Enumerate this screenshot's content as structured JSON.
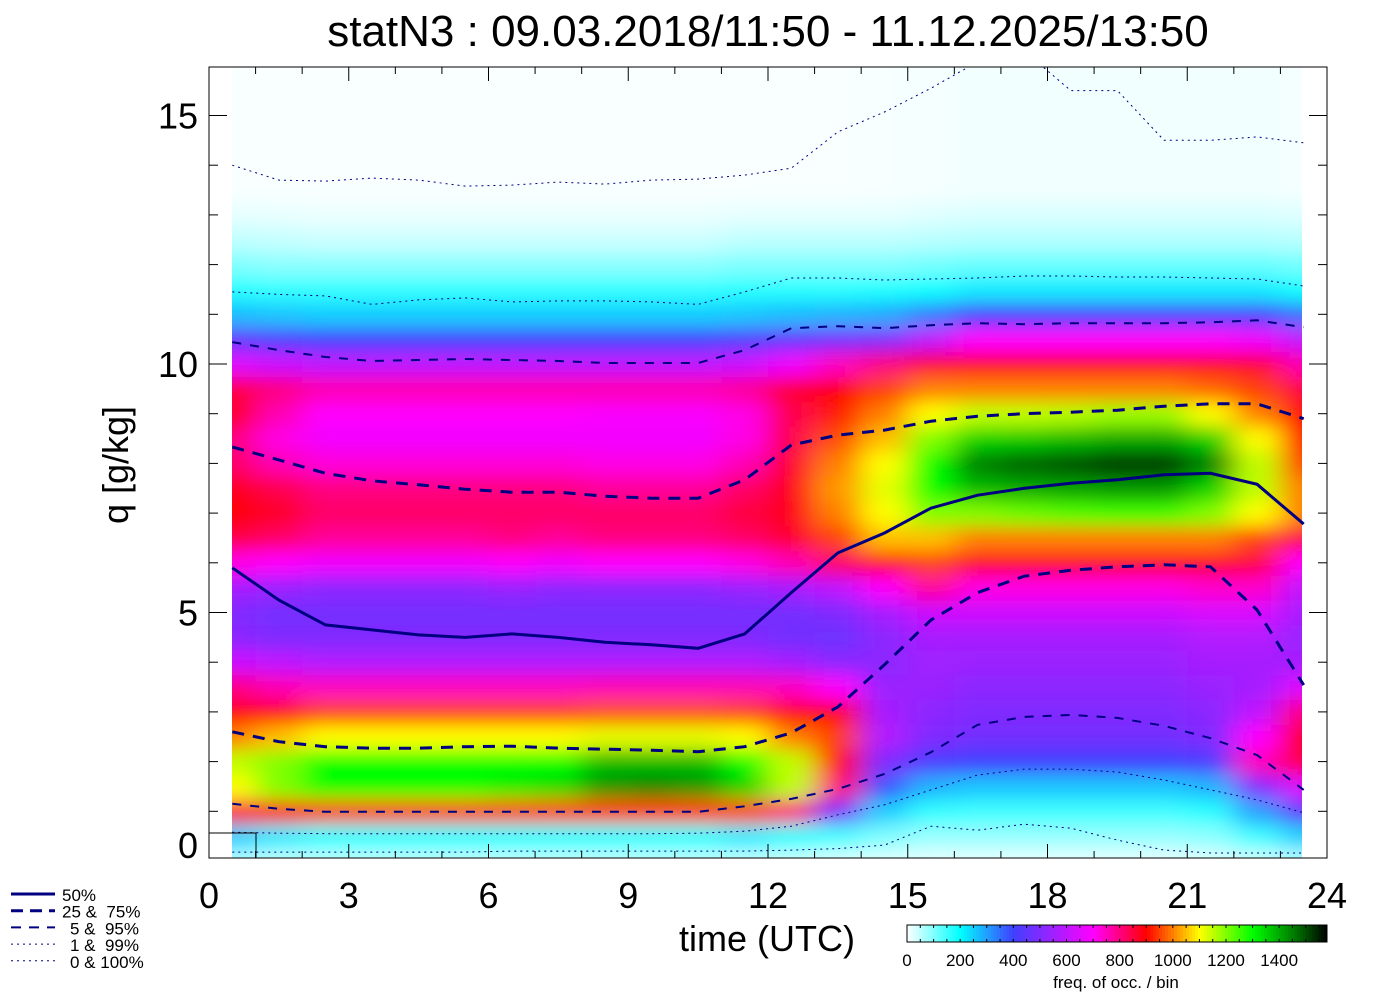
{
  "chart_data": {
    "type": "heatmap",
    "title": "statN3 : 09.03.2018/11:50 - 11.12.2025/13:50",
    "xlabel": "time (UTC)",
    "ylabel": "q [g/kg]",
    "xlim": [
      0,
      24
    ],
    "ylim": [
      0,
      16
    ],
    "xticks": [
      0,
      3,
      6,
      9,
      12,
      15,
      18,
      21,
      24
    ],
    "xtick_labels": [
      "0",
      "3",
      "6",
      "9",
      "12",
      "15",
      "18",
      "21",
      "24"
    ],
    "yticks": [
      0,
      5,
      10,
      15
    ],
    "ytick_labels": [
      "0",
      "5",
      "10",
      "15"
    ],
    "colorbar": {
      "label": "freq. of occ. / bin",
      "range": [
        0,
        1580
      ],
      "ticks": [
        0,
        200,
        400,
        600,
        800,
        1000,
        1200,
        1400
      ],
      "tick_labels": [
        "0",
        "200",
        "400",
        "600",
        "800",
        "1000",
        "1200",
        "1400"
      ],
      "stops": [
        [
          0,
          "#ffffff"
        ],
        [
          200,
          "#00ffff"
        ],
        [
          400,
          "#4040ff"
        ],
        [
          550,
          "#a020ff"
        ],
        [
          700,
          "#ff00ff"
        ],
        [
          900,
          "#ff0000"
        ],
        [
          1000,
          "#ff8000"
        ],
        [
          1100,
          "#ffff00"
        ],
        [
          1300,
          "#00ff00"
        ],
        [
          1450,
          "#008000"
        ],
        [
          1580,
          "#000000"
        ]
      ]
    },
    "legend": [
      {
        "label": "50%",
        "style": "solid"
      },
      {
        "label": "25 &  75%",
        "style": "dashed-thick"
      },
      {
        "label": "5 &  95%",
        "style": "dashed"
      },
      {
        "label": "1 &  99%",
        "style": "dotted"
      },
      {
        "label": "0 & 100%",
        "style": "dotted"
      }
    ],
    "line_color": "#000080",
    "x": [
      0.5,
      1.5,
      2.5,
      3.5,
      4.5,
      5.5,
      6.5,
      7.5,
      8.5,
      9.5,
      10.5,
      11.5,
      12.5,
      13.5,
      14.5,
      15.5,
      16.5,
      17.5,
      18.5,
      19.5,
      20.5,
      21.5,
      22.5,
      23.5
    ],
    "series": [
      {
        "name": "50%",
        "values": [
          5.9,
          5.25,
          4.75,
          4.65,
          4.55,
          4.5,
          4.57,
          4.5,
          4.4,
          4.35,
          4.28,
          4.57,
          5.4,
          6.2,
          6.6,
          7.1,
          7.36,
          7.5,
          7.6,
          7.67,
          7.77,
          7.8,
          7.58,
          6.78
        ]
      },
      {
        "name": "75%",
        "values": [
          8.33,
          8.07,
          7.8,
          7.65,
          7.57,
          7.48,
          7.42,
          7.42,
          7.34,
          7.3,
          7.3,
          7.67,
          8.37,
          8.57,
          8.67,
          8.85,
          8.95,
          9.0,
          9.03,
          9.07,
          9.15,
          9.2,
          9.2,
          8.9
        ]
      },
      {
        "name": "25%",
        "values": [
          2.6,
          2.4,
          2.3,
          2.27,
          2.27,
          2.3,
          2.31,
          2.27,
          2.25,
          2.23,
          2.2,
          2.3,
          2.58,
          3.1,
          3.95,
          4.85,
          5.4,
          5.73,
          5.85,
          5.92,
          5.96,
          5.92,
          5.05,
          3.54
        ]
      },
      {
        "name": "95%",
        "values": [
          10.44,
          10.28,
          10.14,
          10.06,
          10.08,
          10.1,
          10.08,
          10.06,
          10.02,
          10.02,
          10.02,
          10.28,
          10.72,
          10.76,
          10.72,
          10.78,
          10.82,
          10.8,
          10.82,
          10.82,
          10.82,
          10.84,
          10.88,
          10.74
        ]
      },
      {
        "name": "5%",
        "values": [
          1.15,
          1.05,
          0.99,
          0.99,
          0.99,
          0.99,
          0.99,
          0.99,
          0.99,
          0.99,
          0.99,
          1.1,
          1.25,
          1.45,
          1.75,
          2.19,
          2.74,
          2.9,
          2.94,
          2.88,
          2.72,
          2.47,
          2.13,
          1.43
        ]
      },
      {
        "name": "99%",
        "values": [
          11.45,
          11.4,
          11.37,
          11.2,
          11.29,
          11.33,
          11.25,
          11.27,
          11.27,
          11.25,
          11.2,
          11.45,
          11.73,
          11.73,
          11.69,
          11.71,
          11.73,
          11.77,
          11.77,
          11.75,
          11.75,
          11.73,
          11.71,
          11.57
        ]
      },
      {
        "name": "1%",
        "values": [
          0.58,
          0.56,
          0.55,
          0.55,
          0.55,
          0.55,
          0.55,
          0.55,
          0.55,
          0.55,
          0.56,
          0.6,
          0.7,
          0.93,
          1.13,
          1.43,
          1.73,
          1.85,
          1.85,
          1.79,
          1.63,
          1.43,
          1.23,
          0.97
        ]
      },
      {
        "name": "99% upper / 100%",
        "values": [
          14.0,
          13.7,
          13.68,
          13.74,
          13.7,
          13.58,
          13.6,
          13.66,
          13.62,
          13.7,
          13.72,
          13.8,
          13.94,
          14.67,
          15.07,
          15.55,
          16.08,
          16.3,
          15.5,
          15.5,
          14.5,
          14.5,
          14.57,
          14.45
        ]
      },
      {
        "name": "0%",
        "values": [
          0.18,
          0.18,
          0.18,
          0.18,
          0.18,
          0.18,
          0.2,
          0.2,
          0.2,
          0.2,
          0.2,
          0.2,
          0.22,
          0.25,
          0.32,
          0.7,
          0.62,
          0.74,
          0.66,
          0.42,
          0.22,
          0.16,
          0.16,
          0.16
        ]
      }
    ],
    "heatmap": {
      "q": [
        0,
        0.5,
        1,
        1.5,
        2,
        2.5,
        3,
        3.5,
        4,
        4.5,
        5,
        5.5,
        6,
        6.5,
        7,
        7.5,
        8,
        8.5,
        9,
        9.5,
        10,
        10.5,
        11,
        11.5,
        12,
        12.5,
        13,
        13.5
      ],
      "values": [
        [
          60,
          250,
          850,
          1100,
          1150,
          1000,
          900,
          800,
          620,
          520,
          500,
          560,
          720,
          850,
          900,
          880,
          820,
          800,
          880,
          850,
          650,
          450,
          270,
          170,
          100,
          50,
          20,
          5
        ],
        [
          50,
          220,
          900,
          1200,
          1200,
          1050,
          900,
          760,
          600,
          500,
          480,
          540,
          700,
          820,
          870,
          840,
          760,
          720,
          760,
          800,
          620,
          420,
          260,
          160,
          90,
          45,
          18,
          5
        ],
        [
          50,
          200,
          950,
          1300,
          1300,
          1100,
          950,
          750,
          580,
          500,
          480,
          520,
          680,
          780,
          820,
          800,
          730,
          680,
          700,
          760,
          600,
          400,
          250,
          160,
          90,
          40,
          15,
          5
        ],
        [
          50,
          200,
          950,
          1300,
          1300,
          1100,
          950,
          750,
          580,
          500,
          480,
          520,
          680,
          780,
          820,
          800,
          730,
          680,
          700,
          760,
          600,
          400,
          250,
          160,
          90,
          40,
          15,
          5
        ],
        [
          50,
          200,
          950,
          1300,
          1300,
          1100,
          950,
          750,
          580,
          500,
          480,
          520,
          680,
          780,
          820,
          800,
          730,
          680,
          700,
          760,
          600,
          400,
          250,
          160,
          90,
          40,
          15,
          5
        ],
        [
          50,
          200,
          950,
          1300,
          1300,
          1100,
          950,
          750,
          580,
          500,
          480,
          520,
          680,
          780,
          820,
          800,
          730,
          680,
          700,
          760,
          600,
          400,
          250,
          160,
          90,
          40,
          15,
          5
        ],
        [
          50,
          200,
          950,
          1320,
          1300,
          1100,
          950,
          750,
          580,
          500,
          480,
          540,
          700,
          800,
          820,
          800,
          730,
          680,
          700,
          760,
          600,
          400,
          250,
          160,
          90,
          40,
          15,
          5
        ],
        [
          50,
          200,
          950,
          1340,
          1300,
          1100,
          950,
          750,
          580,
          500,
          480,
          520,
          680,
          780,
          820,
          800,
          730,
          680,
          700,
          760,
          600,
          400,
          250,
          160,
          90,
          40,
          15,
          5
        ],
        [
          50,
          200,
          950,
          1420,
          1380,
          1120,
          960,
          760,
          580,
          500,
          480,
          520,
          700,
          800,
          820,
          780,
          720,
          680,
          690,
          760,
          600,
          400,
          250,
          160,
          90,
          40,
          15,
          5
        ],
        [
          50,
          200,
          950,
          1440,
          1380,
          1120,
          960,
          760,
          580,
          500,
          480,
          520,
          700,
          800,
          820,
          780,
          720,
          680,
          690,
          760,
          600,
          400,
          250,
          160,
          90,
          40,
          15,
          5
        ],
        [
          50,
          200,
          950,
          1420,
          1380,
          1120,
          960,
          760,
          580,
          500,
          480,
          520,
          700,
          800,
          820,
          780,
          720,
          680,
          690,
          760,
          600,
          400,
          250,
          160,
          90,
          40,
          15,
          5
        ],
        [
          50,
          220,
          950,
          1350,
          1300,
          1100,
          950,
          760,
          580,
          500,
          480,
          540,
          720,
          820,
          850,
          820,
          760,
          720,
          720,
          780,
          620,
          420,
          260,
          170,
          100,
          50,
          20,
          5
        ],
        [
          40,
          200,
          800,
          1150,
          1150,
          1000,
          900,
          750,
          560,
          480,
          480,
          560,
          760,
          860,
          880,
          880,
          860,
          840,
          840,
          860,
          680,
          450,
          270,
          170,
          100,
          50,
          20,
          5
        ],
        [
          30,
          150,
          500,
          800,
          900,
          950,
          900,
          700,
          520,
          470,
          500,
          600,
          820,
          950,
          1000,
          1020,
          1000,
          960,
          920,
          900,
          750,
          480,
          280,
          170,
          100,
          50,
          20,
          5
        ],
        [
          25,
          100,
          250,
          380,
          500,
          580,
          560,
          540,
          520,
          520,
          560,
          700,
          900,
          1050,
          1100,
          1120,
          1100,
          1050,
          1000,
          950,
          800,
          500,
          290,
          180,
          100,
          50,
          20,
          6
        ],
        [
          20,
          80,
          160,
          280,
          420,
          500,
          520,
          540,
          550,
          560,
          620,
          780,
          950,
          1050,
          1200,
          1300,
          1300,
          1200,
          1100,
          1000,
          860,
          600,
          340,
          200,
          110,
          55,
          25,
          8
        ],
        [
          20,
          80,
          150,
          260,
          400,
          480,
          500,
          520,
          540,
          560,
          620,
          720,
          880,
          1000,
          1200,
          1380,
          1450,
          1350,
          1150,
          1000,
          880,
          700,
          400,
          220,
          120,
          60,
          30,
          10
        ],
        [
          20,
          80,
          150,
          260,
          400,
          480,
          500,
          520,
          540,
          560,
          620,
          720,
          880,
          1000,
          1220,
          1400,
          1480,
          1360,
          1150,
          1000,
          880,
          700,
          400,
          220,
          120,
          60,
          30,
          10
        ],
        [
          20,
          80,
          150,
          260,
          400,
          480,
          500,
          520,
          540,
          560,
          620,
          720,
          880,
          1000,
          1240,
          1410,
          1500,
          1380,
          1160,
          1000,
          880,
          700,
          400,
          220,
          120,
          60,
          30,
          10
        ],
        [
          20,
          80,
          150,
          260,
          400,
          480,
          500,
          520,
          540,
          560,
          620,
          720,
          880,
          1000,
          1250,
          1420,
          1530,
          1400,
          1180,
          1000,
          880,
          700,
          400,
          220,
          120,
          60,
          30,
          10
        ],
        [
          20,
          80,
          150,
          260,
          400,
          480,
          500,
          520,
          540,
          560,
          620,
          720,
          880,
          1000,
          1250,
          1420,
          1530,
          1400,
          1180,
          1000,
          880,
          700,
          400,
          220,
          120,
          60,
          30,
          10
        ],
        [
          25,
          90,
          170,
          280,
          420,
          500,
          520,
          540,
          560,
          580,
          640,
          740,
          880,
          1000,
          1200,
          1350,
          1450,
          1350,
          1100,
          980,
          880,
          700,
          400,
          220,
          120,
          60,
          30,
          10
        ],
        [
          40,
          150,
          300,
          500,
          750,
          700,
          600,
          560,
          560,
          580,
          640,
          740,
          850,
          950,
          1100,
          1150,
          1150,
          1100,
          1000,
          950,
          860,
          680,
          400,
          220,
          120,
          60,
          30,
          10
        ],
        [
          60,
          250,
          450,
          650,
          850,
          900,
          800,
          650,
          560,
          540,
          560,
          600,
          700,
          850,
          1000,
          1000,
          950,
          900,
          900,
          850,
          760,
          600,
          350,
          200,
          110,
          55,
          25,
          8
        ]
      ]
    }
  }
}
